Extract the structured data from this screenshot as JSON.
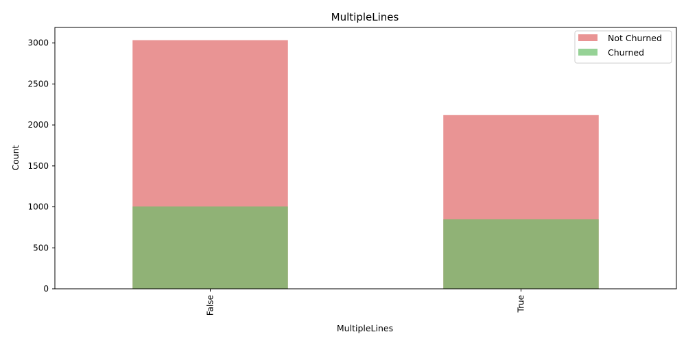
{
  "chart_data": {
    "type": "bar",
    "title": "MultipleLines",
    "xlabel": "MultipleLines",
    "ylabel": "Count",
    "categories": [
      "False",
      "True"
    ],
    "series": [
      {
        "name": "Not Churned",
        "values": [
          3035,
          2120
        ],
        "color": "#e06666"
      },
      {
        "name": "Churned",
        "values": [
          1005,
          850
        ],
        "color": "#6abf69"
      }
    ],
    "overlay": true,
    "bar_opacity": 0.7,
    "ylim": [
      0,
      3190
    ],
    "yticks": [
      0,
      500,
      1000,
      1500,
      2000,
      2500,
      3000
    ],
    "grid": false,
    "legend_position": "top-right"
  }
}
